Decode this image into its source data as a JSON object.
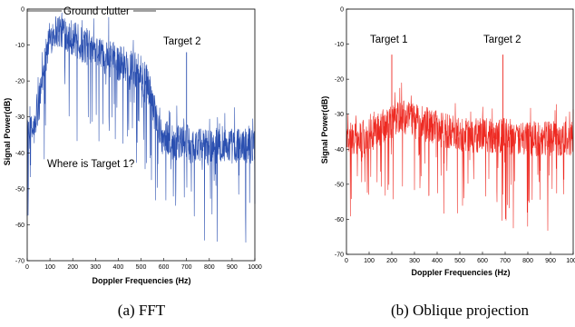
{
  "chart_data": [
    {
      "type": "line",
      "panel": "a",
      "caption": "(a) FFT",
      "xlabel": "Doppler Frequencies (Hz)",
      "ylabel": "Signal Power(dB)",
      "xlim": [
        0,
        1000
      ],
      "ylim": [
        -70,
        0
      ],
      "xticks": [
        0,
        100,
        200,
        300,
        400,
        500,
        600,
        700,
        800,
        900,
        1000
      ],
      "yticks": [
        0,
        -10,
        -20,
        -30,
        -40,
        -50,
        -60,
        -70
      ],
      "color": "#2a4fb0",
      "annotations": [
        {
          "text": "Ground clutter",
          "x": 210,
          "y": 1
        },
        {
          "text": "Target 2",
          "x": 700,
          "y": -7
        },
        {
          "text": "Where is Target 1?",
          "x": 180,
          "y": -43
        }
      ],
      "series": [
        {
          "x": [
            0,
            20,
            40,
            60,
            80,
            100,
            120,
            140,
            160,
            180,
            200,
            220,
            240,
            260,
            280,
            300,
            320,
            340,
            360,
            380,
            400,
            420,
            440,
            460,
            480,
            500,
            520,
            540,
            560,
            580,
            600,
            620,
            640,
            660,
            680,
            700,
            720,
            740,
            760,
            780,
            800,
            820,
            840,
            860,
            880,
            900,
            920,
            940,
            960,
            980,
            1000
          ],
          "values": [
            -37,
            -34,
            -33,
            -22,
            -14,
            -8,
            -6,
            -6,
            -6,
            -7,
            -8,
            -9,
            -10,
            -10,
            -11,
            -11,
            -12,
            -13,
            -14,
            -14,
            -15,
            -15,
            -15,
            -16,
            -17,
            -18,
            -20,
            -23,
            -29,
            -34,
            -36,
            -36,
            -37,
            -37,
            -37,
            -37,
            -38,
            -38,
            -38,
            -38,
            -38,
            -38,
            -38,
            -38,
            -38,
            -38,
            -38,
            -38,
            -38,
            -38,
            -38
          ]
        }
      ]
    },
    {
      "type": "line",
      "panel": "b",
      "caption": "(b) Oblique projection",
      "xlabel": "Doppler Frequencies (Hz)",
      "ylabel": "Signal Power(dB)",
      "xlim": [
        0,
        1000
      ],
      "ylim": [
        -70,
        0
      ],
      "xticks": [
        0,
        100,
        200,
        300,
        400,
        500,
        600,
        700,
        800,
        900,
        1000
      ],
      "yticks": [
        0,
        -10,
        -20,
        -30,
        -40,
        -50,
        -60,
        -70
      ],
      "color": "#ee2a22",
      "annotations": [
        {
          "text": "Target 1",
          "x": 200,
          "y": -8
        },
        {
          "text": "Target 2",
          "x": 690,
          "y": -8
        }
      ],
      "series": [
        {
          "x": [
            0,
            50,
            100,
            150,
            200,
            250,
            300,
            350,
            400,
            450,
            500,
            550,
            600,
            650,
            700,
            750,
            800,
            850,
            900,
            950,
            1000
          ],
          "values": [
            -37,
            -37,
            -36,
            -34,
            -32,
            -31,
            -32,
            -33,
            -34,
            -35,
            -36,
            -36,
            -36,
            -36,
            -36,
            -37,
            -37,
            -37,
            -37,
            -37,
            -37
          ]
        }
      ]
    }
  ]
}
